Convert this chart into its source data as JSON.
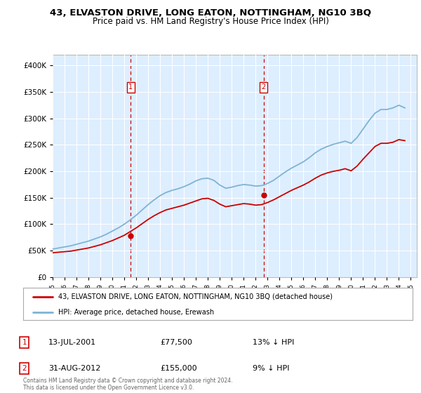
{
  "title": "43, ELVASTON DRIVE, LONG EATON, NOTTINGHAM, NG10 3BQ",
  "subtitle": "Price paid vs. HM Land Registry's House Price Index (HPI)",
  "hpi_label": "HPI: Average price, detached house, Erewash",
  "property_label": "43, ELVASTON DRIVE, LONG EATON, NOTTINGHAM, NG10 3BQ (detached house)",
  "sale1_date": "13-JUL-2001",
  "sale1_price": 77500,
  "sale1_pct": "13% ↓ HPI",
  "sale2_date": "31-AUG-2012",
  "sale2_price": 155000,
  "sale2_pct": "9% ↓ HPI",
  "sale1_year": 2001.53,
  "sale2_year": 2012.66,
  "ylim_min": 0,
  "ylim_max": 420000,
  "yticks": [
    0,
    50000,
    100000,
    150000,
    200000,
    250000,
    300000,
    350000,
    400000
  ],
  "ytick_labels": [
    "£0",
    "£50K",
    "£100K",
    "£150K",
    "£200K",
    "£250K",
    "£300K",
    "£350K",
    "£400K"
  ],
  "xlim_min": 1995,
  "xlim_max": 2025.5,
  "background_color": "#ddeeff",
  "red_color": "#cc0000",
  "blue_color": "#7fb3d3",
  "grid_color": "#ffffff",
  "footer_text": "Contains HM Land Registry data © Crown copyright and database right 2024.\nThis data is licensed under the Open Government Licence v3.0.",
  "hpi_data_years": [
    1995.0,
    1995.5,
    1996.0,
    1996.5,
    1997.0,
    1997.5,
    1998.0,
    1998.5,
    1999.0,
    1999.5,
    2000.0,
    2000.5,
    2001.0,
    2001.5,
    2002.0,
    2002.5,
    2003.0,
    2003.5,
    2004.0,
    2004.5,
    2005.0,
    2005.5,
    2006.0,
    2006.5,
    2007.0,
    2007.5,
    2008.0,
    2008.5,
    2009.0,
    2009.5,
    2010.0,
    2010.5,
    2011.0,
    2011.5,
    2012.0,
    2012.5,
    2013.0,
    2013.5,
    2014.0,
    2014.5,
    2015.0,
    2015.5,
    2016.0,
    2016.5,
    2017.0,
    2017.5,
    2018.0,
    2018.5,
    2019.0,
    2019.5,
    2020.0,
    2020.5,
    2021.0,
    2021.5,
    2022.0,
    2022.5,
    2023.0,
    2023.5,
    2024.0,
    2024.5
  ],
  "hpi_data_values": [
    53000,
    55000,
    57000,
    59000,
    62000,
    65000,
    68000,
    72000,
    76000,
    81000,
    87000,
    93000,
    100000,
    108000,
    117000,
    127000,
    137000,
    146000,
    154000,
    160000,
    164000,
    167000,
    171000,
    176000,
    182000,
    186000,
    187000,
    183000,
    174000,
    168000,
    170000,
    173000,
    175000,
    174000,
    172000,
    173000,
    177000,
    183000,
    191000,
    199000,
    206000,
    212000,
    218000,
    226000,
    235000,
    242000,
    247000,
    251000,
    254000,
    257000,
    253000,
    264000,
    280000,
    296000,
    310000,
    317000,
    317000,
    320000,
    325000,
    320000
  ],
  "property_data_years": [
    1995.0,
    1995.5,
    1996.0,
    1996.5,
    1997.0,
    1997.5,
    1998.0,
    1998.5,
    1999.0,
    1999.5,
    2000.0,
    2000.5,
    2001.0,
    2001.5,
    2002.0,
    2002.5,
    2003.0,
    2003.5,
    2004.0,
    2004.5,
    2005.0,
    2005.5,
    2006.0,
    2006.5,
    2007.0,
    2007.5,
    2008.0,
    2008.5,
    2009.0,
    2009.5,
    2010.0,
    2010.5,
    2011.0,
    2011.5,
    2012.0,
    2012.5,
    2013.0,
    2013.5,
    2014.0,
    2014.5,
    2015.0,
    2015.5,
    2016.0,
    2016.5,
    2017.0,
    2017.5,
    2018.0,
    2018.5,
    2019.0,
    2019.5,
    2020.0,
    2020.5,
    2021.0,
    2021.5,
    2022.0,
    2022.5,
    2023.0,
    2023.5,
    2024.0,
    2024.5
  ],
  "property_data_values": [
    46000,
    47000,
    48000,
    49000,
    51000,
    53000,
    55000,
    58000,
    61000,
    65000,
    69000,
    74000,
    79000,
    86000,
    93000,
    101000,
    109000,
    116000,
    122000,
    127000,
    130000,
    133000,
    136000,
    140000,
    144000,
    148000,
    149000,
    145000,
    138000,
    133000,
    135000,
    137000,
    139000,
    138000,
    136000,
    137000,
    141000,
    146000,
    152000,
    158000,
    164000,
    169000,
    174000,
    180000,
    187000,
    193000,
    197000,
    200000,
    202000,
    205000,
    201000,
    210000,
    223000,
    235000,
    247000,
    253000,
    253000,
    255000,
    260000,
    258000
  ]
}
